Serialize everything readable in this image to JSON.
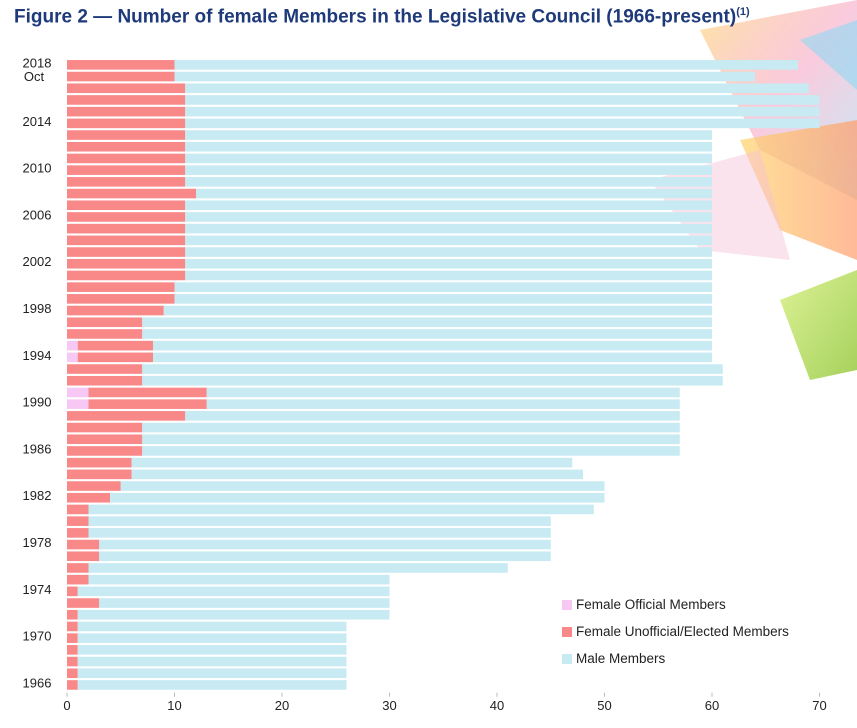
{
  "figure": {
    "title": "Figure 2 — Number of female Members in the Legislative Council (1966-present)",
    "title_note": "(1)"
  },
  "chart_data": {
    "type": "bar",
    "orientation": "horizontal",
    "stacked": true,
    "title": "Figure 2 — Number of female Members in the Legislative Council (1966-present)",
    "xlabel": "",
    "ylabel": "",
    "xlim": [
      0,
      70
    ],
    "x_ticks": [
      "0",
      "10",
      "20",
      "30",
      "40",
      "50",
      "60",
      "70"
    ],
    "legend_position": "bottom-right",
    "grid": false,
    "colors": {
      "female_official": "#f8c8f5",
      "female_unofficial": "#f98888",
      "male": "#c7eaf3"
    },
    "categories": [
      "2018",
      "2018 Oct",
      "2017",
      "2016",
      "2015",
      "2014",
      "2013",
      "2012",
      "2011",
      "2010",
      "2009",
      "2008",
      "2007",
      "2006",
      "2005",
      "2004",
      "2003",
      "2002",
      "2001",
      "2000",
      "1999",
      "1998",
      "1997",
      "1996",
      "1995",
      "1994",
      "1993",
      "1992",
      "1991",
      "1990",
      "1989",
      "1988",
      "1987",
      "1986",
      "1985",
      "1984",
      "1983",
      "1982",
      "1981",
      "1980",
      "1979",
      "1978",
      "1977",
      "1976",
      "1975",
      "1974",
      "1973",
      "1972",
      "1971",
      "1970",
      "1969",
      "1968",
      "1967",
      "1966"
    ],
    "category_labels": [
      "2018",
      "Oct",
      "",
      "",
      "",
      "2014",
      "",
      "",
      "",
      "2010",
      "",
      "",
      "",
      "2006",
      "",
      "",
      "",
      "2002",
      "",
      "",
      "",
      "1998",
      "",
      "",
      "",
      "1994",
      "",
      "",
      "",
      "1990",
      "",
      "",
      "",
      "1986",
      "",
      "",
      "",
      "1982",
      "",
      "",
      "",
      "1978",
      "",
      "",
      "",
      "1974",
      "",
      "",
      "",
      "1970",
      "",
      "",
      "",
      "1966"
    ],
    "series": [
      {
        "name": "Female Official Members",
        "values": [
          0,
          0,
          0,
          0,
          0,
          0,
          0,
          0,
          0,
          0,
          0,
          0,
          0,
          0,
          0,
          0,
          0,
          0,
          0,
          0,
          0,
          0,
          0,
          0,
          1,
          1,
          0,
          0,
          2,
          2,
          0,
          0,
          0,
          0,
          0,
          0,
          0,
          0,
          0,
          0,
          0,
          0,
          0,
          0,
          0,
          0,
          0,
          0,
          0,
          0,
          0,
          0,
          0,
          0
        ]
      },
      {
        "name": "Female Unofficial/Elected Members",
        "values": [
          10,
          10,
          11,
          11,
          11,
          11,
          11,
          11,
          11,
          11,
          11,
          12,
          11,
          11,
          11,
          11,
          11,
          11,
          11,
          10,
          10,
          9,
          7,
          7,
          7,
          7,
          7,
          7,
          11,
          11,
          11,
          7,
          7,
          7,
          6,
          6,
          5,
          4,
          2,
          2,
          2,
          3,
          3,
          2,
          2,
          1,
          3,
          1,
          1,
          1,
          1,
          1,
          1,
          1
        ]
      },
      {
        "name": "Male Members",
        "values": [
          58,
          54,
          58,
          59,
          59,
          59,
          49,
          49,
          49,
          49,
          49,
          48,
          49,
          49,
          49,
          49,
          49,
          49,
          49,
          50,
          50,
          51,
          53,
          53,
          52,
          52,
          54,
          54,
          44,
          44,
          46,
          50,
          50,
          50,
          41,
          42,
          45,
          46,
          47,
          43,
          43,
          42,
          42,
          39,
          28,
          29,
          27,
          29,
          25,
          25,
          25,
          25,
          25,
          25
        ]
      }
    ]
  }
}
